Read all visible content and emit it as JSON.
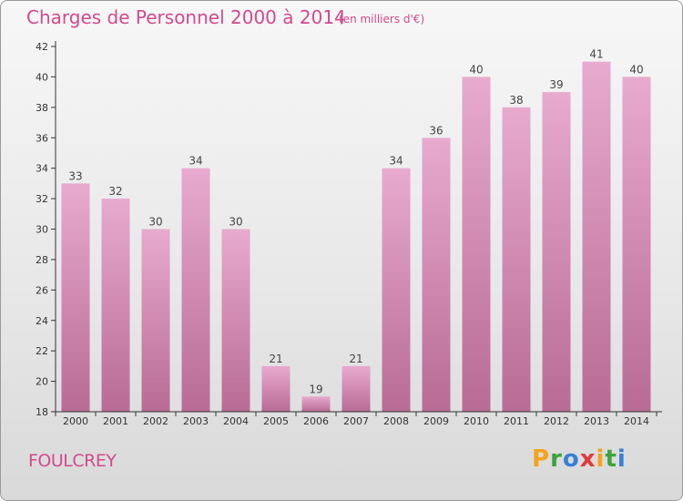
{
  "title": "Charges de Personnel 2000 à 2014",
  "subtitle": "(en milliers d'€)",
  "commune": "FOULCREY",
  "logo": {
    "letters": [
      "P",
      "r",
      "o",
      "x",
      "i",
      "t",
      "i"
    ],
    "colors": [
      "#f7a21b",
      "#3ea33e",
      "#3a7fd5",
      "#e23a3a",
      "#f7a21b",
      "#3ea33e",
      "#3a7fd5"
    ]
  },
  "colors": {
    "title": "#d24a8c",
    "bar_top": "#e8aacf",
    "bar_bottom": "#b86b94",
    "axis": "#333333"
  },
  "chart_data": {
    "type": "bar",
    "categories": [
      "2000",
      "2001",
      "2002",
      "2003",
      "2004",
      "2005",
      "2006",
      "2007",
      "2008",
      "2009",
      "2010",
      "2011",
      "2012",
      "2013",
      "2014"
    ],
    "values": [
      33,
      32,
      30,
      34,
      30,
      21,
      19,
      21,
      34,
      36,
      40,
      38,
      39,
      41,
      40
    ],
    "title": "Charges de Personnel 2000 à 2014",
    "subtitle": "(en milliers d'€)",
    "ylim": [
      18,
      42
    ],
    "yticks": [
      18,
      20,
      22,
      24,
      26,
      28,
      30,
      32,
      34,
      36,
      38,
      40,
      42
    ],
    "grid": false,
    "legend": "none"
  }
}
